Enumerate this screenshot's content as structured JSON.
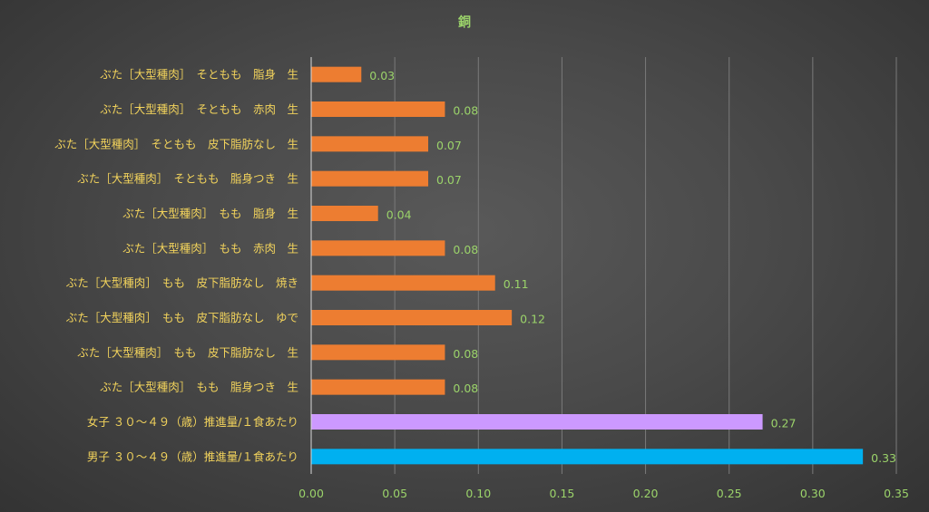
{
  "chart_data": {
    "type": "bar",
    "orientation": "horizontal",
    "title": "銅",
    "categories": [
      "ぶた［大型種肉］　そともも　脂身　生",
      "ぶた［大型種肉］　そともも　赤肉　生",
      "ぶた［大型種肉］　そともも　皮下脂肪なし　生",
      "ぶた［大型種肉］　そともも　脂身つき　生",
      "ぶた［大型種肉］　もも　脂身　生",
      "ぶた［大型種肉］　もも　赤肉　生",
      "ぶた［大型種肉］　もも　皮下脂肪なし　焼き",
      "ぶた［大型種肉］　もも　皮下脂肪なし　ゆで",
      "ぶた［大型種肉］　もも　皮下脂肪なし　生",
      "ぶた［大型種肉］　もも　脂身つき　生",
      "女子 ３０～４９（歳）推進量/１食あたり",
      "男子 ３０～４９（歳）推進量/１食あたり"
    ],
    "values": [
      0.03,
      0.08,
      0.07,
      0.07,
      0.04,
      0.08,
      0.11,
      0.12,
      0.08,
      0.08,
      0.27,
      0.33
    ],
    "value_labels": [
      "0.03",
      "0.08",
      "0.07",
      "0.07",
      "0.04",
      "0.08",
      "0.11",
      "0.12",
      "0.08",
      "0.08",
      "0.27",
      "0.33"
    ],
    "bar_colors": [
      "#ed7d31",
      "#ed7d31",
      "#ed7d31",
      "#ed7d31",
      "#ed7d31",
      "#ed7d31",
      "#ed7d31",
      "#ed7d31",
      "#ed7d31",
      "#ed7d31",
      "#cc99ff",
      "#00b0f0"
    ],
    "xlim": [
      0,
      0.35
    ],
    "x_ticks": [
      0,
      0.05,
      0.1,
      0.15,
      0.2,
      0.25,
      0.3,
      0.35
    ],
    "x_tick_labels": [
      "0.00",
      "0.05",
      "0.10",
      "0.15",
      "0.20",
      "0.25",
      "0.30",
      "0.35"
    ],
    "xlabel": "",
    "ylabel": "",
    "grid": true,
    "legend": false,
    "colors": {
      "text_label": "#f2d35c",
      "text_value": "#9bd36a",
      "gridline": "#7a7a7a",
      "axis": "#d9d9d9"
    }
  }
}
